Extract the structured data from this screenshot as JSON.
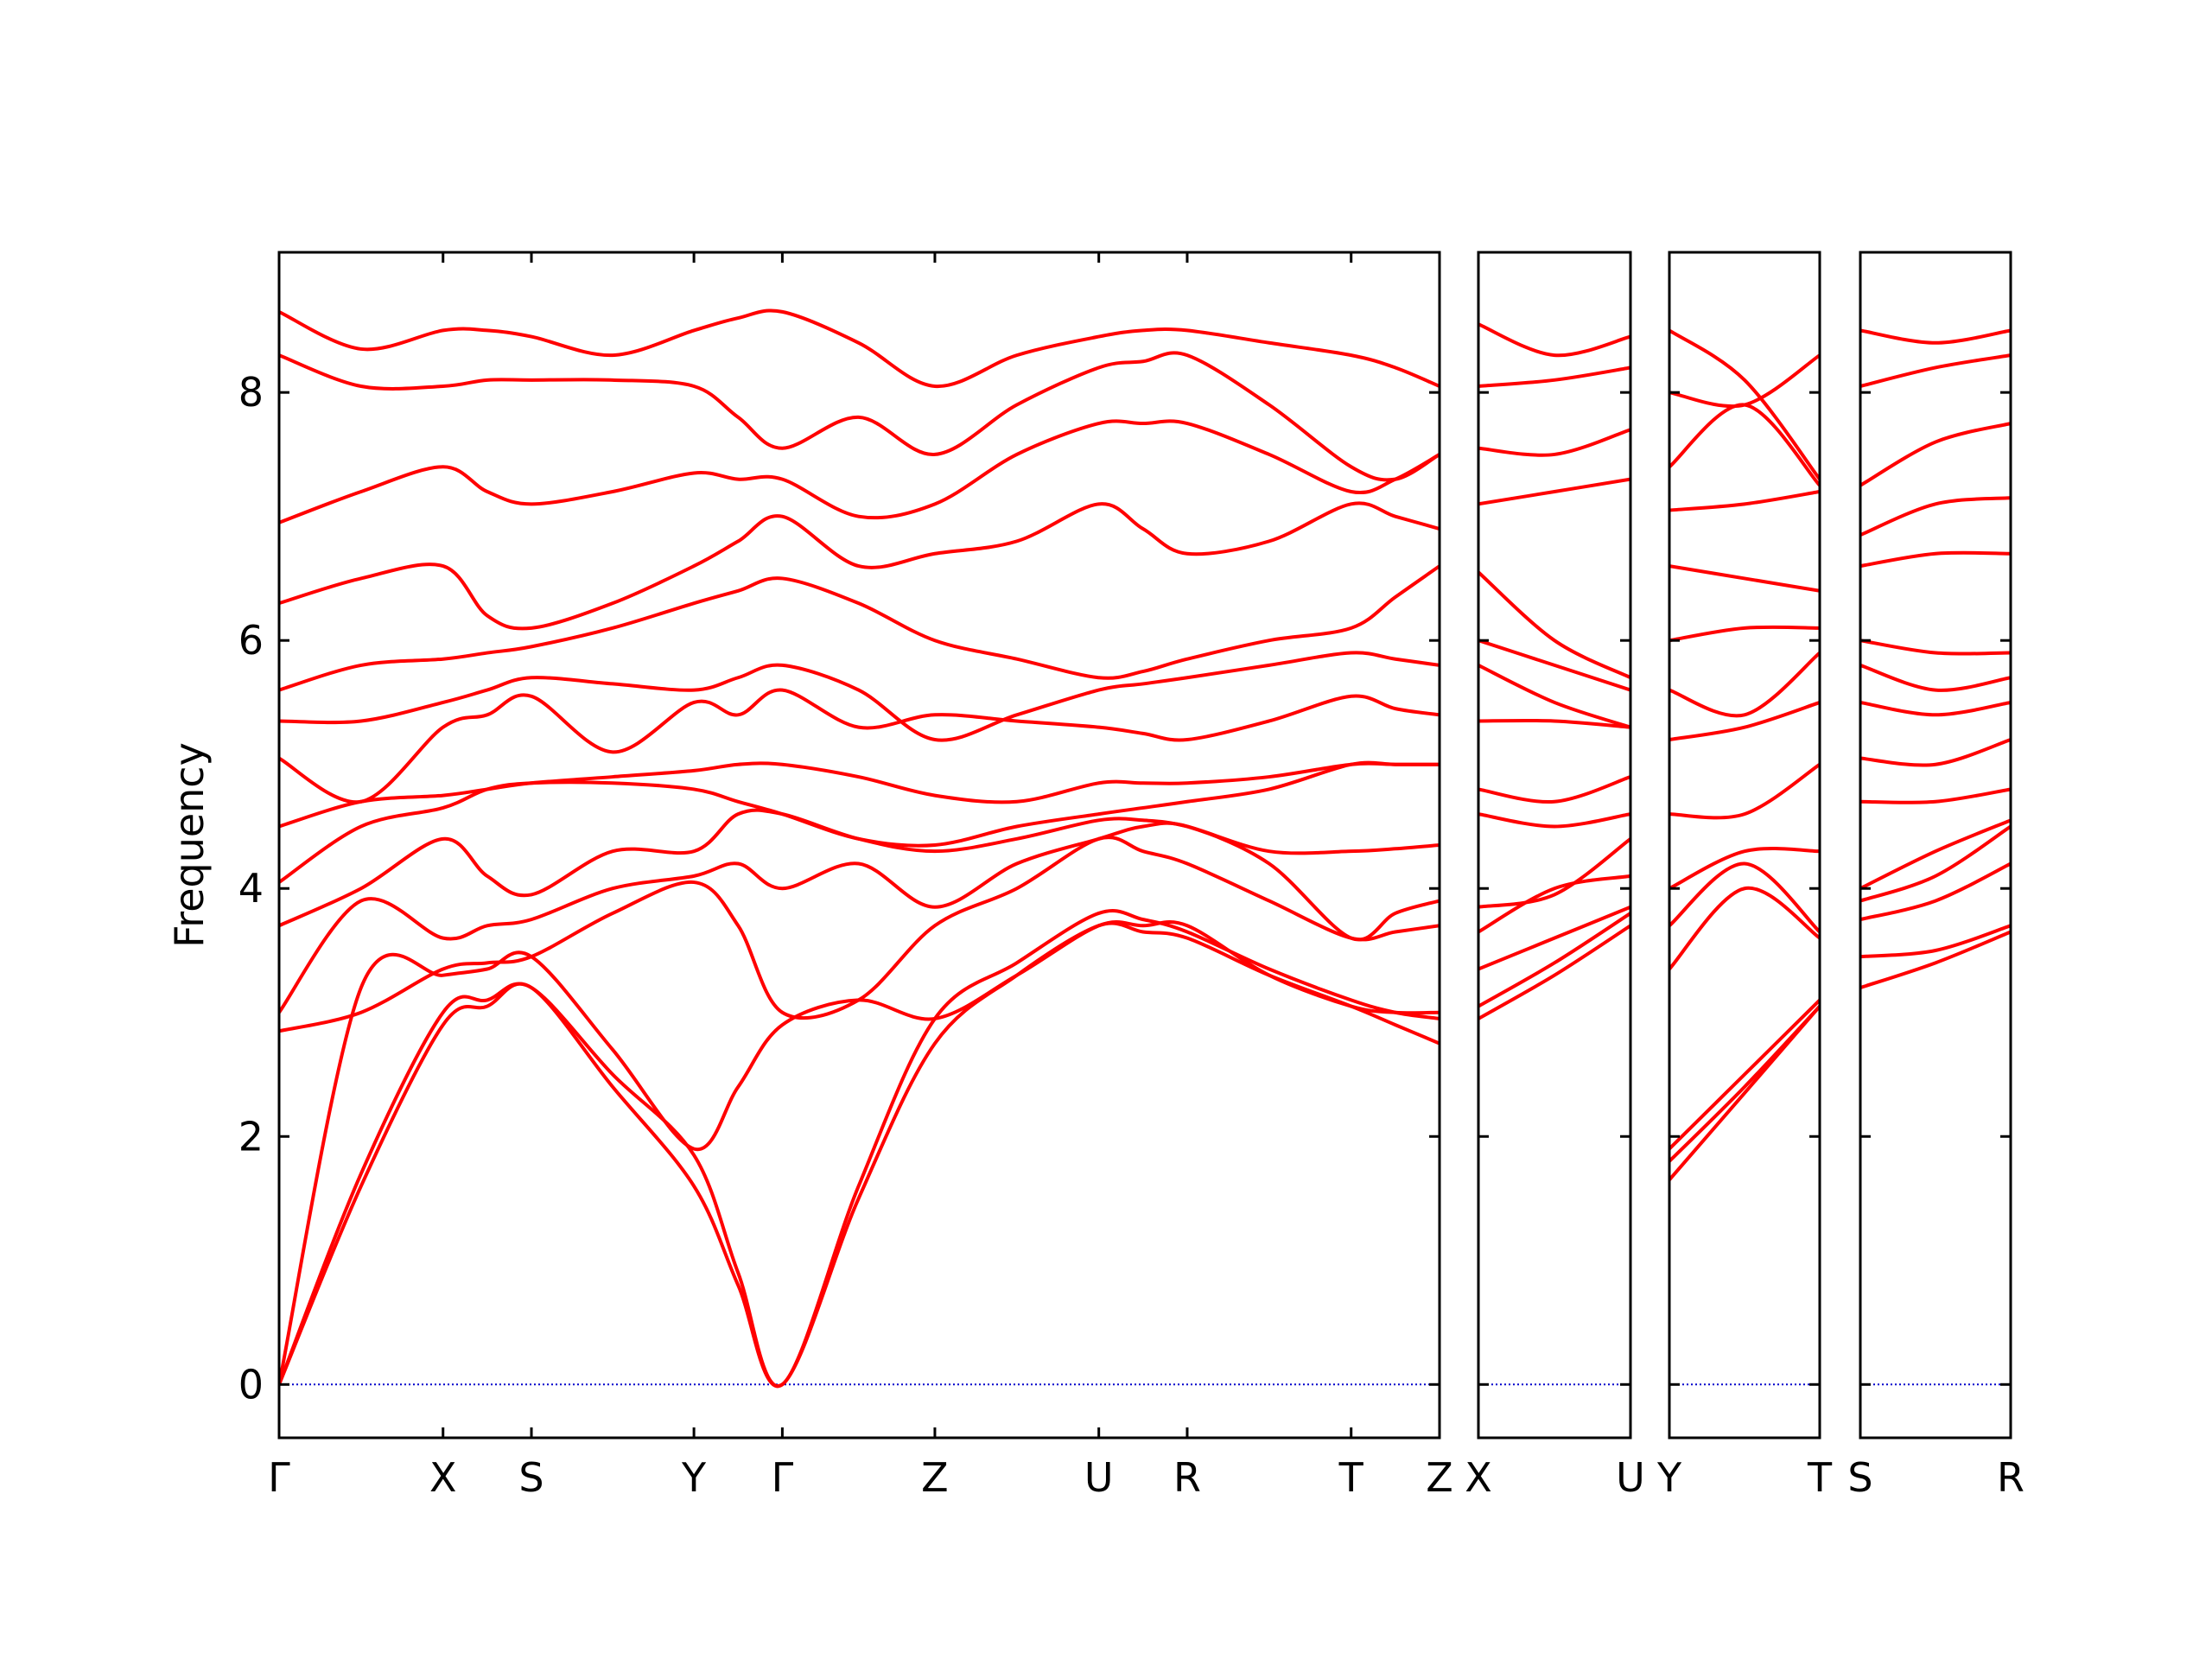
{
  "chart_data": [
    {
      "type": "line",
      "ylabel": "Frequency",
      "color": "#ff0000",
      "hline": 0,
      "hline_color": "#0000cc",
      "ylim": [
        -0.43,
        9.13
      ],
      "yticks": [
        0,
        2,
        4,
        6,
        8
      ],
      "xlim": [
        0,
        8.14
      ],
      "xticks": [
        {
          "value": 0,
          "label": "Γ"
        },
        {
          "value": 1.15,
          "label": "X"
        },
        {
          "value": 1.77,
          "label": "S"
        },
        {
          "value": 2.91,
          "label": "Y"
        },
        {
          "value": 3.53,
          "label": "Γ"
        },
        {
          "value": 4.6,
          "label": "Z"
        },
        {
          "value": 5.75,
          "label": "U"
        },
        {
          "value": 6.37,
          "label": "R"
        },
        {
          "value": 7.52,
          "label": "T"
        },
        {
          "value": 8.14,
          "label": "Z"
        }
      ],
      "x": [
        0,
        0.575,
        1.15,
        1.46,
        1.77,
        2.34,
        2.91,
        3.22,
        3.53,
        4.065,
        4.6,
        5.175,
        5.75,
        6.06,
        6.37,
        6.945,
        7.52,
        7.83,
        8.14
      ],
      "series": [
        {
          "values": [
            0,
            1.6,
            2.9,
            3.05,
            3.2,
            2.4,
            1.6,
            0.8,
            0,
            1.5,
            2.75,
            3.3,
            3.7,
            3.65,
            3.6,
            3.3,
            3.05,
            2.9,
            2.75
          ]
        },
        {
          "values": [
            0,
            1.7,
            3.0,
            3.1,
            3.2,
            2.5,
            1.85,
            0.9,
            0,
            1.6,
            2.95,
            3.4,
            3.8,
            3.75,
            3.65,
            3.35,
            3.1,
            3.0,
            2.95
          ]
        },
        {
          "values": [
            0,
            3.2,
            3.3,
            3.35,
            3.45,
            2.7,
            1.9,
            2.4,
            2.9,
            3.1,
            2.95,
            3.3,
            3.7,
            3.7,
            3.7,
            3.3,
            3.05,
            3.0,
            3.0
          ]
        },
        {
          "values": [
            2.85,
            3.0,
            3.35,
            3.4,
            3.45,
            3.8,
            4.05,
            3.7,
            3.0,
            3.1,
            3.7,
            4.0,
            4.4,
            4.3,
            4.2,
            3.9,
            3.6,
            3.65,
            3.7
          ]
        },
        {
          "values": [
            3.0,
            3.9,
            3.6,
            3.7,
            3.75,
            4.0,
            4.1,
            4.2,
            4.0,
            4.2,
            3.85,
            4.2,
            4.4,
            4.5,
            4.5,
            4.2,
            3.6,
            3.8,
            3.9
          ]
        },
        {
          "values": [
            3.7,
            4.0,
            4.4,
            4.1,
            3.95,
            4.3,
            4.3,
            4.6,
            4.6,
            4.4,
            4.3,
            4.4,
            4.55,
            4.55,
            4.5,
            4.3,
            4.3,
            4.32,
            4.35
          ]
        },
        {
          "values": [
            4.05,
            4.5,
            4.65,
            4.8,
            4.85,
            4.85,
            4.8,
            4.7,
            4.6,
            4.4,
            4.35,
            4.5,
            4.6,
            4.65,
            4.7,
            4.8,
            5.0,
            5.0,
            5.0
          ]
        },
        {
          "values": [
            4.5,
            4.7,
            4.75,
            4.8,
            4.85,
            4.9,
            4.95,
            5.0,
            5.0,
            4.9,
            4.75,
            4.7,
            4.85,
            4.85,
            4.85,
            4.9,
            5.0,
            5.0,
            5.0
          ]
        },
        {
          "values": [
            5.05,
            4.7,
            5.3,
            5.4,
            5.55,
            5.1,
            5.5,
            5.4,
            5.6,
            5.3,
            5.4,
            5.35,
            5.3,
            5.25,
            5.2,
            5.35,
            5.55,
            5.45,
            5.4
          ]
        },
        {
          "values": [
            5.35,
            5.35,
            5.5,
            5.6,
            5.7,
            5.65,
            5.6,
            5.7,
            5.8,
            5.6,
            5.2,
            5.4,
            5.6,
            5.65,
            5.7,
            5.8,
            5.9,
            5.85,
            5.8
          ]
        },
        {
          "values": [
            5.6,
            5.8,
            5.85,
            5.9,
            5.95,
            6.1,
            6.3,
            6.4,
            6.5,
            6.3,
            6.0,
            5.85,
            5.7,
            5.75,
            5.85,
            6.0,
            6.1,
            6.35,
            6.6
          ]
        },
        {
          "values": [
            6.3,
            6.5,
            6.6,
            6.2,
            6.1,
            6.3,
            6.6,
            6.8,
            7.0,
            6.6,
            6.7,
            6.8,
            7.1,
            6.9,
            6.7,
            6.8,
            7.1,
            7.0,
            6.9
          ]
        },
        {
          "values": [
            6.95,
            7.2,
            7.4,
            7.2,
            7.1,
            7.2,
            7.35,
            7.3,
            7.3,
            7.0,
            7.1,
            7.5,
            7.75,
            7.75,
            7.75,
            7.5,
            7.2,
            7.3,
            7.5
          ]
        },
        {
          "values": [
            8.3,
            8.05,
            8.05,
            8.1,
            8.1,
            8.1,
            8.05,
            7.8,
            7.55,
            7.8,
            7.5,
            7.9,
            8.2,
            8.25,
            8.3,
            7.9,
            7.4,
            7.3,
            7.5
          ]
        },
        {
          "values": [
            8.65,
            8.35,
            8.5,
            8.5,
            8.45,
            8.3,
            8.5,
            8.6,
            8.65,
            8.4,
            8.05,
            8.3,
            8.45,
            8.5,
            8.5,
            8.4,
            8.3,
            8.2,
            8.05
          ]
        }
      ]
    },
    {
      "type": "line",
      "color": "#ff0000",
      "hline": 0,
      "hline_color": "#0000cc",
      "ylim": [
        -0.43,
        9.13
      ],
      "xlim": [
        0,
        1.07
      ],
      "xticks": [
        {
          "value": 0,
          "label": "X"
        },
        {
          "value": 1.07,
          "label": "U"
        }
      ],
      "x": [
        0,
        0.535,
        1.07
      ],
      "series": [
        {
          "values": [
            2.95,
            3.3,
            3.7
          ]
        },
        {
          "values": [
            3.05,
            3.4,
            3.8
          ]
        },
        {
          "values": [
            3.35,
            3.6,
            3.85
          ]
        },
        {
          "values": [
            3.65,
            4.0,
            4.1
          ]
        },
        {
          "values": [
            3.85,
            3.95,
            4.4
          ]
        },
        {
          "values": [
            4.6,
            4.5,
            4.6
          ]
        },
        {
          "values": [
            4.8,
            4.7,
            4.9
          ]
        },
        {
          "values": [
            5.35,
            5.35,
            5.3
          ]
        },
        {
          "values": [
            5.8,
            5.5,
            5.3
          ]
        },
        {
          "values": [
            6.0,
            5.8,
            5.6
          ]
        },
        {
          "values": [
            6.55,
            6.0,
            5.7
          ]
        },
        {
          "values": [
            7.1,
            7.2,
            7.3
          ]
        },
        {
          "values": [
            7.55,
            7.5,
            7.7
          ]
        },
        {
          "values": [
            8.05,
            8.1,
            8.2
          ]
        },
        {
          "values": [
            8.55,
            8.3,
            8.45
          ]
        }
      ]
    },
    {
      "type": "line",
      "color": "#ff0000",
      "hline": 0,
      "hline_color": "#0000cc",
      "ylim": [
        -0.43,
        9.13
      ],
      "xlim": [
        0,
        1.06
      ],
      "xticks": [
        {
          "value": 0,
          "label": "Y"
        },
        {
          "value": 1.06,
          "label": "T"
        }
      ],
      "x": [
        0,
        0.53,
        1.06
      ],
      "series": [
        {
          "values": [
            1.65,
            2.35,
            3.05
          ]
        },
        {
          "values": [
            1.8,
            2.4,
            3.05
          ]
        },
        {
          "values": [
            1.9,
            2.5,
            3.1
          ]
        },
        {
          "values": [
            3.35,
            4.0,
            3.6
          ]
        },
        {
          "values": [
            3.7,
            4.2,
            3.65
          ]
        },
        {
          "values": [
            4.0,
            4.3,
            4.3
          ]
        },
        {
          "values": [
            4.6,
            4.6,
            5.0
          ]
        },
        {
          "values": [
            5.2,
            5.3,
            5.5
          ]
        },
        {
          "values": [
            5.6,
            5.4,
            5.9
          ]
        },
        {
          "values": [
            6.0,
            6.1,
            6.1
          ]
        },
        {
          "values": [
            6.6,
            6.5,
            6.4
          ]
        },
        {
          "values": [
            7.05,
            7.1,
            7.2
          ]
        },
        {
          "values": [
            7.4,
            7.9,
            7.25
          ]
        },
        {
          "values": [
            8.0,
            7.9,
            8.3
          ]
        },
        {
          "values": [
            8.5,
            8.1,
            7.3
          ]
        }
      ]
    },
    {
      "type": "line",
      "color": "#ff0000",
      "hline": 0,
      "hline_color": "#0000cc",
      "ylim": [
        -0.43,
        9.13
      ],
      "xlim": [
        0,
        1.06
      ],
      "xticks": [
        {
          "value": 0,
          "label": "S"
        },
        {
          "value": 1.06,
          "label": "R"
        }
      ],
      "x": [
        0,
        0.53,
        1.06
      ],
      "series": [
        {
          "values": [
            3.2,
            3.4,
            3.65
          ]
        },
        {
          "values": [
            3.45,
            3.5,
            3.7
          ]
        },
        {
          "values": [
            3.75,
            3.9,
            4.2
          ]
        },
        {
          "values": [
            3.9,
            4.1,
            4.5
          ]
        },
        {
          "values": [
            4.0,
            4.3,
            4.55
          ]
        },
        {
          "values": [
            4.7,
            4.7,
            4.8
          ]
        },
        {
          "values": [
            5.05,
            5.0,
            5.2
          ]
        },
        {
          "values": [
            5.5,
            5.4,
            5.5
          ]
        },
        {
          "values": [
            5.8,
            5.6,
            5.7
          ]
        },
        {
          "values": [
            6.0,
            5.9,
            5.9
          ]
        },
        {
          "values": [
            6.6,
            6.7,
            6.7
          ]
        },
        {
          "values": [
            6.85,
            7.1,
            7.15
          ]
        },
        {
          "values": [
            7.25,
            7.6,
            7.75
          ]
        },
        {
          "values": [
            8.05,
            8.2,
            8.3
          ]
        },
        {
          "values": [
            8.5,
            8.4,
            8.5
          ]
        }
      ]
    }
  ]
}
